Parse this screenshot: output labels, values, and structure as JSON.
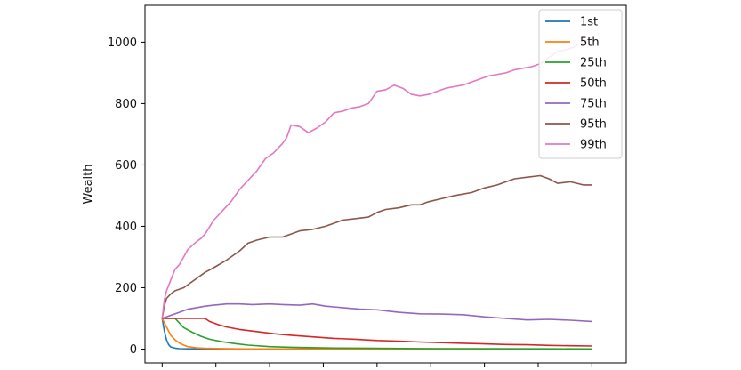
{
  "chart_data": {
    "type": "line",
    "title": "",
    "xlabel": "",
    "ylabel": "Wealth",
    "xlim": [
      -4,
      108
    ],
    "ylim": [
      -45,
      1120
    ],
    "yticks": [
      0,
      200,
      400,
      600,
      800,
      1000
    ],
    "xticks": [
      0,
      12.5,
      25,
      37.5,
      50,
      62.5,
      75,
      87.5,
      100
    ],
    "grid": false,
    "legend_position": "top-right",
    "series": [
      {
        "name": "1st",
        "color": "#1f77b4",
        "x": [
          0,
          0.5,
          1,
          1.5,
          2,
          3,
          4,
          6,
          10,
          20,
          40,
          60,
          80,
          100
        ],
        "y": [
          100,
          60,
          30,
          14,
          7,
          3,
          1.5,
          0.8,
          0.4,
          0.2,
          0.1,
          0.05,
          0.02,
          0.01
        ]
      },
      {
        "name": "5th",
        "color": "#ff7f0e",
        "x": [
          0,
          1,
          2,
          3,
          4,
          5,
          6,
          8,
          10,
          15,
          20,
          30,
          50,
          75,
          100
        ],
        "y": [
          100,
          72,
          45,
          30,
          20,
          13,
          8,
          4,
          2.5,
          1.2,
          0.6,
          0.3,
          0.1,
          0.05,
          0.02
        ]
      },
      {
        "name": "25th",
        "color": "#2ca02c",
        "x": [
          0,
          3,
          4,
          5,
          7,
          9,
          11,
          14,
          17,
          20,
          25,
          30,
          40,
          50,
          60,
          75,
          90,
          100
        ],
        "y": [
          100,
          100,
          85,
          70,
          55,
          42,
          32,
          24,
          18,
          13,
          8,
          6,
          3.5,
          2.5,
          1.8,
          1.2,
          0.8,
          0.5
        ]
      },
      {
        "name": "50th",
        "color": "#d62728",
        "x": [
          0,
          5,
          10,
          11,
          13,
          15,
          18,
          22,
          26,
          30,
          35,
          40,
          45,
          50,
          55,
          60,
          65,
          70,
          75,
          80,
          85,
          90,
          95,
          100
        ],
        "y": [
          100,
          100,
          100,
          90,
          80,
          72,
          64,
          57,
          50,
          45,
          40,
          35,
          32,
          28,
          26,
          23,
          21,
          19,
          17,
          15,
          14,
          12,
          11,
          10
        ]
      },
      {
        "name": "75th",
        "color": "#9467bd",
        "x": [
          0,
          2,
          4,
          6,
          8,
          10,
          12,
          15,
          18,
          21,
          25,
          28,
          32,
          35,
          38,
          42,
          46,
          50,
          55,
          60,
          65,
          70,
          75,
          80,
          85,
          90,
          95,
          100
        ],
        "y": [
          100,
          110,
          120,
          130,
          135,
          140,
          143,
          147,
          147,
          145,
          147,
          145,
          143,
          147,
          140,
          135,
          130,
          128,
          120,
          115,
          114,
          112,
          105,
          100,
          95,
          97,
          94,
          90
        ]
      },
      {
        "name": "95th",
        "color": "#8c564b",
        "x": [
          0,
          0.5,
          1,
          2,
          3,
          5,
          7,
          10,
          12,
          15,
          18,
          20,
          22,
          25,
          28,
          30,
          32,
          35,
          38,
          40,
          42,
          45,
          48,
          50,
          52,
          55,
          58,
          60,
          62,
          65,
          68,
          70,
          72,
          75,
          78,
          80,
          82,
          85,
          88,
          90,
          92,
          95,
          98,
          100
        ],
        "y": [
          100,
          140,
          165,
          180,
          190,
          200,
          220,
          250,
          265,
          290,
          320,
          345,
          355,
          365,
          365,
          375,
          385,
          390,
          400,
          410,
          420,
          425,
          430,
          445,
          455,
          460,
          470,
          470,
          480,
          490,
          500,
          505,
          510,
          525,
          535,
          545,
          555,
          560,
          565,
          555,
          540,
          545,
          535,
          535
        ]
      },
      {
        "name": "99th",
        "color": "#e377c2",
        "x": [
          0,
          0.5,
          1,
          2,
          3,
          4,
          5,
          6,
          8,
          9,
          10,
          12,
          14,
          16,
          18,
          20,
          22,
          24,
          26,
          28,
          29,
          30,
          32,
          34,
          36,
          38,
          40,
          42,
          44,
          46,
          48,
          50,
          52,
          54,
          56,
          58,
          60,
          62,
          64,
          66,
          68,
          70,
          72,
          74,
          76,
          78,
          80,
          82,
          84,
          86,
          88,
          90,
          92,
          94,
          96,
          98,
          100
        ],
        "y": [
          100,
          160,
          190,
          225,
          260,
          275,
          300,
          325,
          350,
          360,
          375,
          420,
          450,
          480,
          520,
          550,
          580,
          620,
          640,
          670,
          690,
          730,
          725,
          705,
          720,
          740,
          770,
          775,
          785,
          790,
          800,
          840,
          845,
          860,
          850,
          830,
          825,
          830,
          840,
          850,
          855,
          860,
          870,
          880,
          890,
          895,
          900,
          910,
          915,
          920,
          930,
          950,
          970,
          975,
          985,
          1000,
          1015
        ]
      }
    ]
  }
}
